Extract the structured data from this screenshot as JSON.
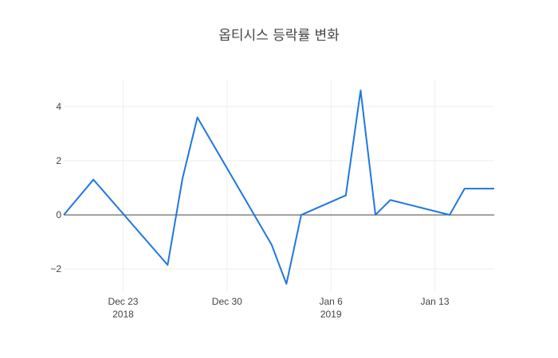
{
  "chart_data": {
    "type": "line",
    "title": "옵티시스 등락률 변화",
    "xlabel": "",
    "ylabel": "",
    "grid": true,
    "x": [
      "2018-12-19",
      "2018-12-21",
      "2018-12-26",
      "2018-12-27",
      "2018-12-28",
      "2019-01-02",
      "2019-01-03",
      "2019-01-04",
      "2019-01-07",
      "2019-01-08",
      "2019-01-09",
      "2019-01-10",
      "2019-01-14",
      "2019-01-15",
      "2019-01-17"
    ],
    "series": [
      {
        "color": "#1f77e0",
        "values": [
          0.0,
          1.3,
          -1.85,
          1.35,
          3.6,
          -1.1,
          -2.55,
          0.0,
          0.72,
          4.6,
          0.0,
          0.55,
          0.0,
          0.97,
          0.97
        ]
      }
    ],
    "xlim": [
      "2018-12-19",
      "2019-01-17"
    ],
    "ylim": [
      -2.85,
      5.0
    ],
    "yticks": [
      -2,
      0,
      2,
      4
    ],
    "ytick_labels": [
      "−2",
      "0",
      "2",
      "4"
    ],
    "xticks": [
      {
        "date": "2018-12-23",
        "label": "Dec 23",
        "sub": "2018"
      },
      {
        "date": "2018-12-30",
        "label": "Dec 30",
        "sub": ""
      },
      {
        "date": "2019-01-06",
        "label": "Jan 6",
        "sub": "2019"
      },
      {
        "date": "2019-01-13",
        "label": "Jan 13",
        "sub": ""
      }
    ]
  }
}
